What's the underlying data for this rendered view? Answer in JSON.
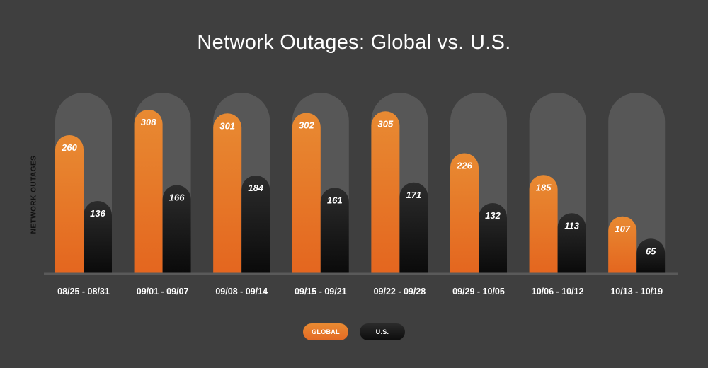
{
  "chart_data": {
    "type": "bar",
    "title": "Network Outages: Global vs. U.S.",
    "ylabel": "NETWORK OUTAGES",
    "xlabel": "",
    "categories": [
      "08/25 - 08/31",
      "09/01 - 09/07",
      "09/08 - 09/14",
      "09/15 - 09/21",
      "09/22 - 09/28",
      "09/29 - 10/05",
      "10/06 - 10/12",
      "10/13 - 10/19"
    ],
    "series": [
      {
        "name": "GLOBAL",
        "values": [
          260,
          308,
          301,
          302,
          305,
          226,
          185,
          107
        ],
        "color": "#e67a2b"
      },
      {
        "name": "U.S.",
        "values": [
          136,
          166,
          184,
          161,
          171,
          132,
          113,
          65
        ],
        "color": "#121212"
      }
    ],
    "ylim": [
      0,
      340
    ],
    "grid": false,
    "data_labels": true,
    "legend_position": "bottom-center"
  },
  "colors": {
    "background": "#3f3f3f",
    "track": "#575757",
    "baseline": "#5a5a5a",
    "global_top": "#e88a32",
    "global_bottom": "#e4661f",
    "us_top": "#2c2c2c",
    "us_bottom": "#0a0a0a"
  }
}
